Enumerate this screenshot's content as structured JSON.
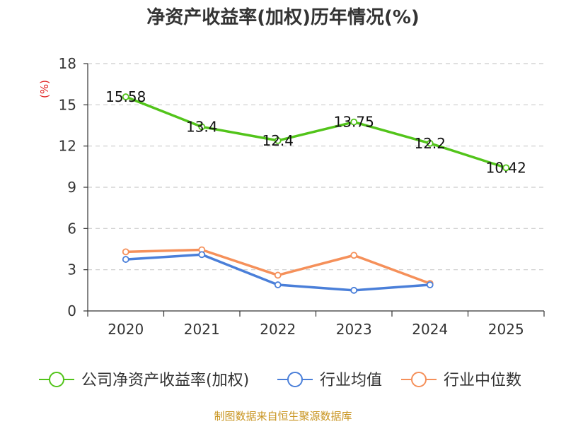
{
  "chart_data": {
    "type": "line",
    "title": "净资产收益率(加权)历年情况(%)",
    "ylabel": "(%)",
    "xlabel": "",
    "categories": [
      "2020",
      "2021",
      "2022",
      "2023",
      "2024",
      "2025"
    ],
    "ylim": [
      0,
      18
    ],
    "yticks": [
      0,
      3,
      6,
      9,
      12,
      15,
      18
    ],
    "grid": true,
    "legend_position": "bottom",
    "series": [
      {
        "name": "公司净资产收益率(加权)",
        "color": "#52c41a",
        "values": [
          15.58,
          13.4,
          12.4,
          13.75,
          12.2,
          10.42
        ],
        "show_labels": true
      },
      {
        "name": "行业均值",
        "color": "#4a7fd9",
        "values": [
          3.75,
          4.1,
          1.9,
          1.5,
          1.9,
          null
        ],
        "show_labels": false
      },
      {
        "name": "行业中位数",
        "color": "#f5905a",
        "values": [
          4.3,
          4.45,
          2.6,
          4.05,
          2.0,
          null
        ],
        "show_labels": false
      }
    ],
    "source": "制图数据来自恒生聚源数据库"
  }
}
